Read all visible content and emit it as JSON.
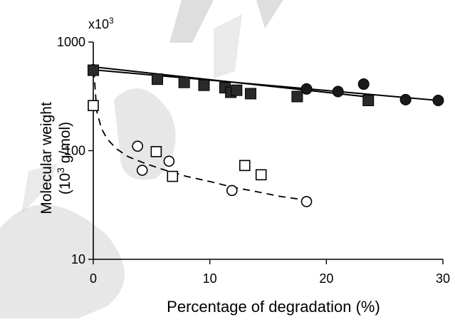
{
  "chart_data": {
    "type": "scatter",
    "title": "",
    "multiplier_label": "x10",
    "multiplier_exp": "3",
    "xlabel": "Percentage of degradation (%)",
    "ylabel_line1": "Molecular weight",
    "ylabel_line2_pre": "(10",
    "ylabel_line2_sup": "3",
    "ylabel_line2_post": " g/mol)",
    "xlim": [
      0,
      30
    ],
    "ylim": [
      10,
      1000
    ],
    "y_scale": "log",
    "x_ticks": [
      0,
      10,
      20,
      30
    ],
    "x_tick_labels": [
      "0",
      "10",
      "20",
      "30"
    ],
    "y_ticks": [
      10,
      100,
      1000
    ],
    "y_tick_labels": [
      "10",
      "100",
      "1000"
    ],
    "grid": false,
    "legend": "none",
    "series": [
      {
        "marker": "filled-circle",
        "color": "#1a1a1a",
        "x": [
          0,
          18.3,
          21,
          23.2,
          26.8,
          29.6
        ],
        "y": [
          555,
          370,
          350,
          410,
          295,
          290
        ]
      },
      {
        "marker": "filled-square",
        "color": "#2a2a2a",
        "x": [
          0,
          5.5,
          7.8,
          9.5,
          11.3,
          11.8,
          12.3,
          13.5,
          17.5,
          23.6
        ],
        "y": [
          550,
          455,
          425,
          400,
          380,
          345,
          360,
          335,
          315,
          290
        ]
      },
      {
        "marker": "open-circle",
        "color": "#000000",
        "x": [
          3.8,
          4.2,
          6.5,
          11.9,
          18.3
        ],
        "y": [
          110,
          66,
          80,
          43,
          34
        ]
      },
      {
        "marker": "open-square",
        "color": "#000000",
        "x": [
          0,
          5.4,
          6.8,
          13,
          14.4
        ],
        "y": [
          260,
          98,
          58,
          73,
          60
        ]
      }
    ],
    "fits": [
      {
        "style": "solid",
        "x": [
          0,
          29.6
        ],
        "y": [
          555,
          290
        ]
      },
      {
        "style": "solid",
        "x": [
          0,
          23.6
        ],
        "y": [
          590,
          312
        ]
      },
      {
        "style": "dashed",
        "x": [
          0.05,
          0.3,
          0.7,
          1.2,
          2,
          3,
          4.5,
          6,
          8,
          10,
          12,
          14,
          16,
          18.3
        ],
        "y": [
          550,
          230,
          160,
          128,
          104,
          88,
          76,
          67,
          58,
          52,
          46,
          42,
          38,
          35
        ]
      }
    ]
  },
  "watermark": {
    "text": "Accepted Manuscript",
    "color": "#969696"
  }
}
